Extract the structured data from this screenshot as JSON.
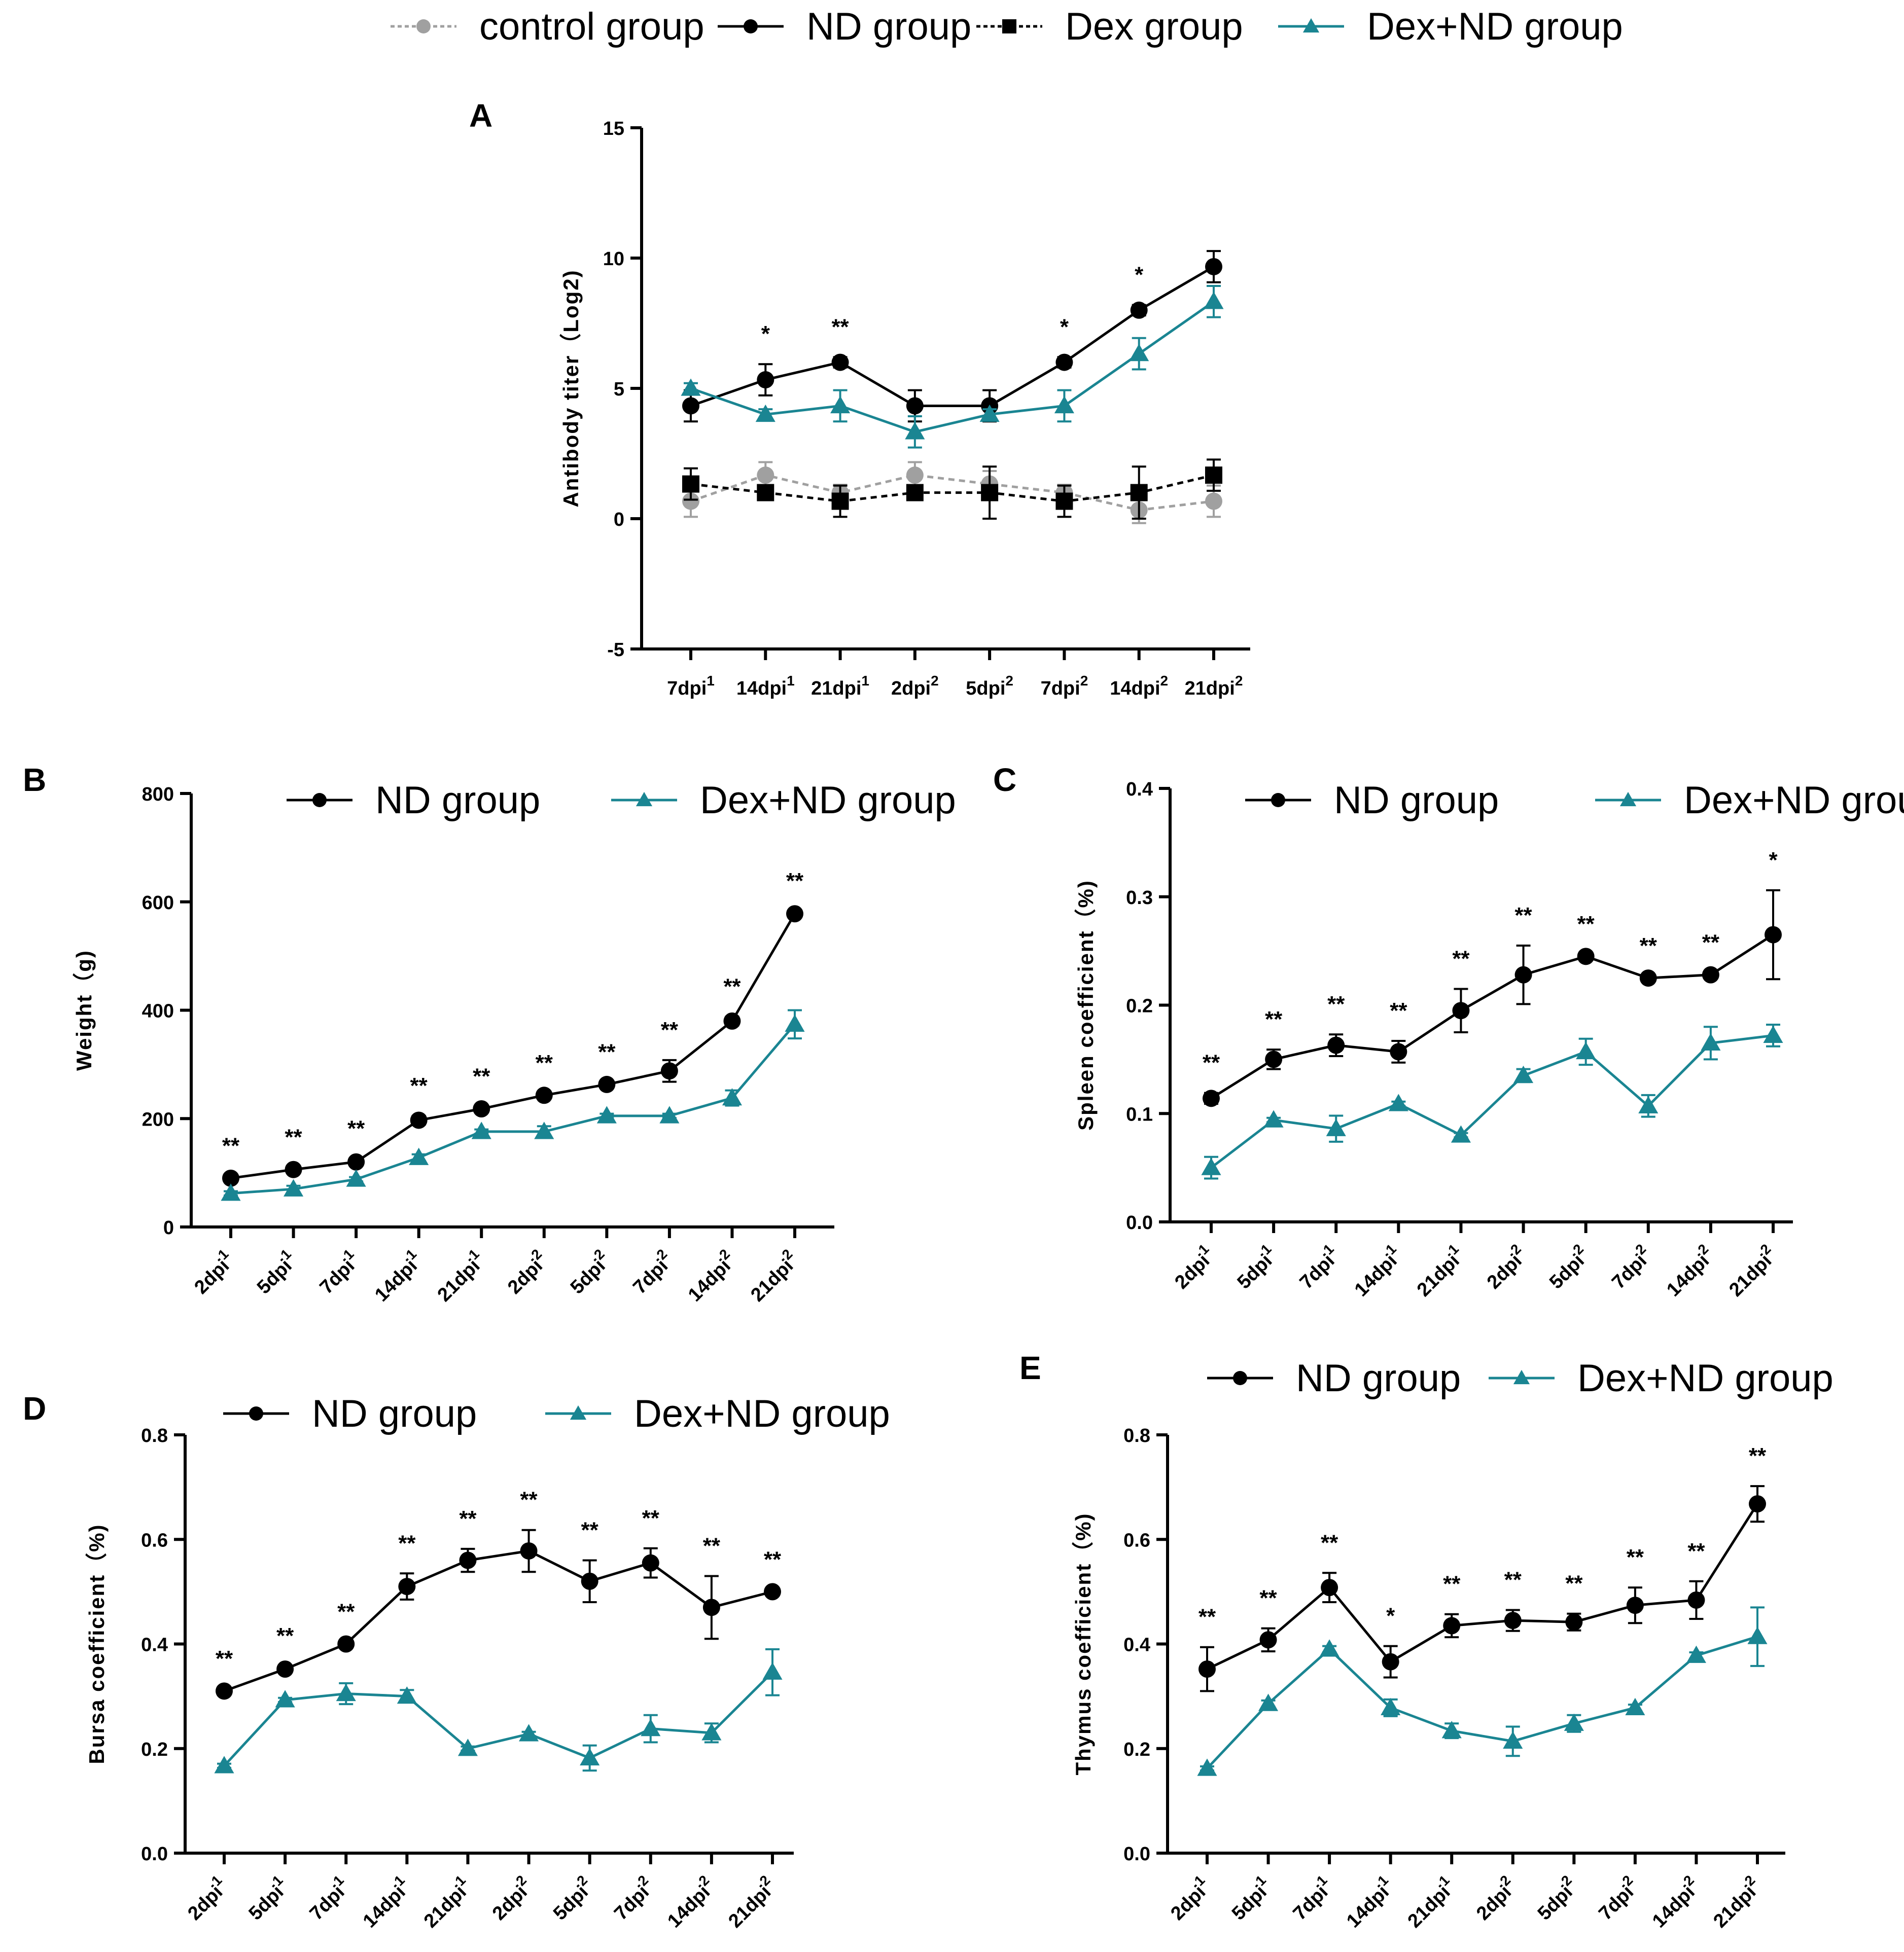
{
  "colors": {
    "control": "#a0a0a0",
    "nd": "#000000",
    "dex": "#000000",
    "dexnd": "#1a8592"
  },
  "top_legend": [
    {
      "label": "control group",
      "series": "control"
    },
    {
      "label": "ND group",
      "series": "nd"
    },
    {
      "label": "Dex group",
      "series": "dex"
    },
    {
      "label": "Dex+ND group",
      "series": "dexnd"
    }
  ],
  "chart_data": [
    {
      "panel": "A",
      "type": "line",
      "ylabel": "Antibody titer（Log2)",
      "ylim": [
        -5,
        15
      ],
      "yticks": [
        "15",
        "10",
        "5",
        "0",
        "-5"
      ],
      "categories": [
        {
          "base": "7dpi",
          "sup": "1"
        },
        {
          "base": "14dpi",
          "sup": "1"
        },
        {
          "base": "21dpi",
          "sup": "1"
        },
        {
          "base": "2dpi",
          "sup": "2"
        },
        {
          "base": "5dpi",
          "sup": "2"
        },
        {
          "base": "7dpi",
          "sup": "2"
        },
        {
          "base": "14dpi",
          "sup": "2"
        },
        {
          "base": "21dpi",
          "sup": "2"
        }
      ],
      "series": [
        {
          "name": "control group",
          "key": "control",
          "values": [
            0.67,
            1.67,
            1.0,
            1.67,
            1.33,
            1.0,
            0.33,
            0.67
          ],
          "errors": [
            0.6,
            0.5,
            0.3,
            0.5,
            0.5,
            0.3,
            0.5,
            0.6
          ]
        },
        {
          "name": "Dex group",
          "key": "dex",
          "values": [
            1.33,
            1.0,
            0.67,
            1.0,
            1.0,
            0.67,
            1.0,
            1.67
          ],
          "errors": [
            0.6,
            0.2,
            0.6,
            0.2,
            1.0,
            0.6,
            1.0,
            0.6
          ]
        },
        {
          "name": "ND group",
          "key": "nd",
          "values": [
            4.33,
            5.33,
            6.0,
            4.33,
            4.33,
            6.0,
            8.0,
            9.67
          ],
          "errors": [
            0.6,
            0.6,
            0.2,
            0.6,
            0.6,
            0.2,
            0.2,
            0.6
          ]
        },
        {
          "name": "Dex+ND group",
          "key": "dexnd",
          "values": [
            5.0,
            4.0,
            4.33,
            3.33,
            4.0,
            4.33,
            6.33,
            8.33
          ],
          "errors": [
            0.2,
            0.2,
            0.6,
            0.6,
            0.2,
            0.6,
            0.6,
            0.6
          ]
        }
      ],
      "significance": [
        "",
        "*",
        "**",
        "",
        "",
        "*",
        "*",
        ""
      ]
    },
    {
      "panel": "B",
      "type": "line",
      "ylabel": "Weight（g)",
      "ylim": [
        0,
        800
      ],
      "yticks": [
        "800",
        "600",
        "400",
        "200",
        "0"
      ],
      "categories": [
        {
          "base": "2dpi",
          "sup": "1"
        },
        {
          "base": "5dpi",
          "sup": "1"
        },
        {
          "base": "7dpi",
          "sup": "1"
        },
        {
          "base": "14dpi",
          "sup": "1"
        },
        {
          "base": "21dpi",
          "sup": "1"
        },
        {
          "base": "2dpi",
          "sup": "2"
        },
        {
          "base": "5dpi",
          "sup": "2"
        },
        {
          "base": "7dpi",
          "sup": "2"
        },
        {
          "base": "14dpi",
          "sup": "2"
        },
        {
          "base": "21dpi",
          "sup": "2"
        }
      ],
      "legend": [
        "ND group",
        "Dex+ND group"
      ],
      "series": [
        {
          "name": "ND group",
          "key": "nd",
          "values": [
            90,
            106,
            120,
            197,
            218,
            243,
            263,
            288,
            380,
            578
          ],
          "errors": [
            4,
            4,
            6,
            8,
            4,
            4,
            4,
            20,
            8,
            5
          ]
        },
        {
          "name": "Dex+ND group",
          "key": "dexnd",
          "values": [
            62,
            70,
            88,
            128,
            176,
            176,
            205,
            205,
            238,
            374
          ],
          "errors": [
            4,
            6,
            4,
            6,
            4,
            10,
            4,
            4,
            14,
            26
          ]
        }
      ],
      "significance": [
        "**",
        "**",
        "**",
        "**",
        "**",
        "**",
        "**",
        "**",
        "**",
        "**"
      ]
    },
    {
      "panel": "C",
      "type": "line",
      "ylabel": "Spleen coefficient（%)",
      "ylim": [
        0,
        0.4
      ],
      "yticks": [
        "0.4",
        "0.3",
        "0.2",
        "0.1",
        "0.0"
      ],
      "categories": [
        {
          "base": "2dpi",
          "sup": "1"
        },
        {
          "base": "5dpi",
          "sup": "1"
        },
        {
          "base": "7dpi",
          "sup": "1"
        },
        {
          "base": "14dpi",
          "sup": "1"
        },
        {
          "base": "21dpi",
          "sup": "1"
        },
        {
          "base": "2dpi",
          "sup": "2"
        },
        {
          "base": "5dpi",
          "sup": "2"
        },
        {
          "base": "7dpi",
          "sup": "2"
        },
        {
          "base": "14dpi",
          "sup": "2"
        },
        {
          "base": "21dpi",
          "sup": "2"
        }
      ],
      "legend": [
        "ND group",
        "Dex+ND group"
      ],
      "series": [
        {
          "name": "ND group",
          "key": "nd",
          "values": [
            0.114,
            0.15,
            0.163,
            0.157,
            0.195,
            0.228,
            0.245,
            0.225,
            0.228,
            0.265
          ],
          "errors": [
            0.005,
            0.009,
            0.01,
            0.01,
            0.02,
            0.027,
            0.002,
            0.002,
            0.002,
            0.041
          ]
        },
        {
          "name": "Dex+ND group",
          "key": "dexnd",
          "values": [
            0.05,
            0.094,
            0.086,
            0.109,
            0.08,
            0.135,
            0.157,
            0.107,
            0.165,
            0.172
          ],
          "errors": [
            0.01,
            0.002,
            0.012,
            0.002,
            0.002,
            0.006,
            0.012,
            0.01,
            0.015,
            0.01
          ]
        }
      ],
      "significance": [
        "**",
        "**",
        "**",
        "**",
        "**",
        "**",
        "**",
        "**",
        "**",
        "*"
      ]
    },
    {
      "panel": "D",
      "type": "line",
      "ylabel": "Bursa coefficient（%)",
      "ylim": [
        0,
        0.8
      ],
      "yticks": [
        "0.8",
        "0.6",
        "0.4",
        "0.2",
        "0.0"
      ],
      "categories": [
        {
          "base": "2dpi",
          "sup": "1"
        },
        {
          "base": "5dpi",
          "sup": "1"
        },
        {
          "base": "7dpi",
          "sup": "1"
        },
        {
          "base": "14dpi",
          "sup": "1"
        },
        {
          "base": "21dpi",
          "sup": "1"
        },
        {
          "base": "2dpi",
          "sup": "2"
        },
        {
          "base": "5dpi",
          "sup": "2"
        },
        {
          "base": "7dpi",
          "sup": "2"
        },
        {
          "base": "14dpi",
          "sup": "2"
        },
        {
          "base": "21dpi",
          "sup": "2"
        }
      ],
      "legend": [
        "ND group",
        "Dex+ND group"
      ],
      "series": [
        {
          "name": "ND group",
          "key": "nd",
          "values": [
            0.31,
            0.352,
            0.4,
            0.51,
            0.56,
            0.578,
            0.52,
            0.555,
            0.47,
            0.5
          ],
          "errors": [
            0.004,
            0.006,
            0.004,
            0.025,
            0.022,
            0.04,
            0.04,
            0.028,
            0.06,
            0.004
          ]
        },
        {
          "name": "Dex+ND group",
          "key": "dexnd",
          "values": [
            0.167,
            0.293,
            0.305,
            0.3,
            0.2,
            0.228,
            0.182,
            0.238,
            0.23,
            0.346
          ],
          "errors": [
            0.004,
            0.004,
            0.02,
            0.012,
            0.004,
            0.004,
            0.024,
            0.026,
            0.018,
            0.044
          ]
        }
      ],
      "significance": [
        "**",
        "**",
        "**",
        "**",
        "**",
        "**",
        "**",
        "**",
        "**",
        "**"
      ]
    },
    {
      "panel": "E",
      "type": "line",
      "ylabel": "Thymus coefficient（%)",
      "ylim": [
        0,
        0.8
      ],
      "yticks": [
        "0.8",
        "0.6",
        "0.4",
        "0.2",
        "0.0"
      ],
      "categories": [
        {
          "base": "2dpi",
          "sup": "1"
        },
        {
          "base": "5dpi",
          "sup": "1"
        },
        {
          "base": "7dpi",
          "sup": "1"
        },
        {
          "base": "14dpi",
          "sup": "1"
        },
        {
          "base": "21dpi",
          "sup": "1"
        },
        {
          "base": "2dpi",
          "sup": "2"
        },
        {
          "base": "5dpi",
          "sup": "2"
        },
        {
          "base": "7dpi",
          "sup": "2"
        },
        {
          "base": "14dpi",
          "sup": "2"
        },
        {
          "base": "21dpi",
          "sup": "2"
        }
      ],
      "legend": [
        "ND group",
        "Dex+ND group"
      ],
      "series": [
        {
          "name": "ND group",
          "key": "nd",
          "values": [
            0.352,
            0.408,
            0.508,
            0.366,
            0.435,
            0.445,
            0.442,
            0.474,
            0.484,
            0.668
          ],
          "errors": [
            0.042,
            0.022,
            0.028,
            0.03,
            0.022,
            0.02,
            0.016,
            0.034,
            0.036,
            0.034
          ]
        },
        {
          "name": "Dex+ND group",
          "key": "dexnd",
          "values": [
            0.162,
            0.286,
            0.39,
            0.278,
            0.234,
            0.214,
            0.248,
            0.278,
            0.378,
            0.414
          ],
          "errors": [
            0.004,
            0.006,
            0.006,
            0.016,
            0.014,
            0.028,
            0.016,
            0.006,
            0.006,
            0.056
          ]
        }
      ],
      "significance": [
        "**",
        "**",
        "**",
        "*",
        "**",
        "**",
        "**",
        "**",
        "**",
        "**"
      ]
    }
  ]
}
